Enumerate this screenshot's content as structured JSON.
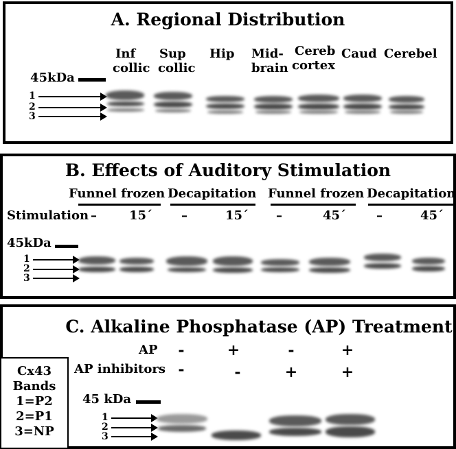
{
  "panel_a": {
    "title": "A. Regional Distribution",
    "marker": "45kDa",
    "band_numbers": [
      "1",
      "2",
      "3"
    ],
    "lanes": [
      {
        "l1": "Inf",
        "l2": "collic"
      },
      {
        "l1": "Sup",
        "l2": "collic"
      },
      {
        "l1": "Hip",
        "l2": ""
      },
      {
        "l1": "Mid-",
        "l2": "brain"
      },
      {
        "l1": "Cereb",
        "l2": "cortex"
      },
      {
        "l1": "Caud",
        "l2": ""
      },
      {
        "l1": "Cerebel",
        "l2": ""
      }
    ]
  },
  "panel_b": {
    "title": "B. Effects of Auditory Stimulation",
    "groups": [
      "Funnel frozen",
      "Decapitation",
      "Funnel frozen",
      "Decapitation"
    ],
    "stimulation_label": "Stimulation",
    "stim_values": [
      "–",
      "15´",
      "–",
      "15´",
      "–",
      "45´",
      "–",
      "45´"
    ],
    "marker": "45kDa",
    "band_numbers": [
      "1",
      "2",
      "3"
    ]
  },
  "panel_c": {
    "title": "C. Alkaline Phosphatase (AP) Treatment",
    "ap_label": "AP",
    "ap_values": [
      "-",
      "+",
      "-",
      "+"
    ],
    "inhibitor_label": "AP inhibitors",
    "inhibitor_values": [
      "-",
      "-",
      "+",
      "+"
    ],
    "marker": "45 kDa",
    "band_numbers": [
      "1",
      "2",
      "3"
    ],
    "legend": [
      "Cx43",
      "Bands",
      "1=P2",
      "2=P1",
      "3=NP"
    ]
  }
}
